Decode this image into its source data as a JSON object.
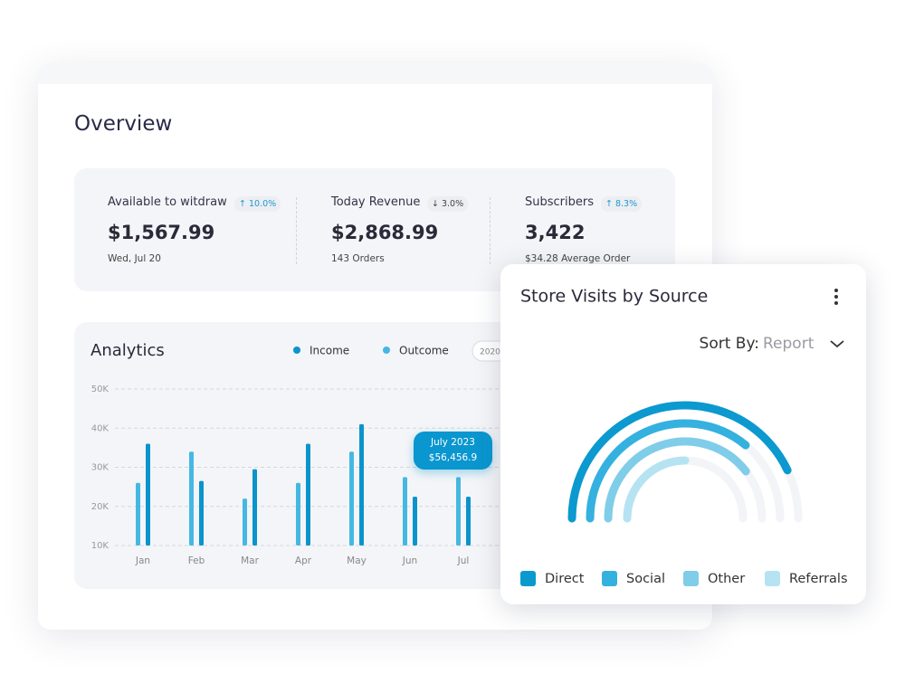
{
  "overview": {
    "title": "Overview",
    "stats": [
      {
        "label": "Available to witdraw",
        "change": "↑ 10.0%",
        "value": "$1,567.99",
        "note": "Wed, Jul 20"
      },
      {
        "label": "Today Revenue",
        "change": "↓ 3.0%",
        "value": "$2,868.99",
        "note": "143 Orders"
      },
      {
        "label": "Subscribers",
        "change": "↑ 8.3%",
        "value": "3,422",
        "note": "$34.28 Average Order"
      }
    ]
  },
  "chart_data": [
    {
      "type": "bar",
      "title": "Analytics",
      "year_button": "2020",
      "categories": [
        "Jan",
        "Feb",
        "Mar",
        "Apr",
        "May",
        "Jun",
        "Jul"
      ],
      "series": [
        {
          "name": "Income",
          "color": "#0a94cb",
          "values": [
            36000,
            26500,
            29500,
            36000,
            41000,
            22500,
            22500
          ]
        },
        {
          "name": "Outcome",
          "color": "#45b8e2",
          "values": [
            26000,
            34000,
            22000,
            26000,
            34000,
            27500,
            27500
          ]
        }
      ],
      "ylim": [
        10000,
        50000
      ],
      "yticks": [
        {
          "value": 10000,
          "label": "10K"
        },
        {
          "value": 20000,
          "label": "20K"
        },
        {
          "value": 30000,
          "label": "30K"
        },
        {
          "value": 40000,
          "label": "40K"
        },
        {
          "value": 50000,
          "label": "50K"
        }
      ],
      "grid": true,
      "annotation": {
        "title": "July 2023",
        "value": "$56,456.9"
      }
    },
    {
      "type": "radial",
      "title": "Store Visits by Source",
      "sort_label": "Sort By:",
      "sort_value": "Report",
      "categories": [
        "Direct",
        "Social",
        "Other",
        "Referrals"
      ],
      "values": [
        86,
        72,
        79,
        50
      ],
      "colors": [
        "#0b99cf",
        "#34b1df",
        "#7fcde9",
        "#b6e3f2"
      ],
      "ylim": [
        0,
        100
      ]
    }
  ]
}
